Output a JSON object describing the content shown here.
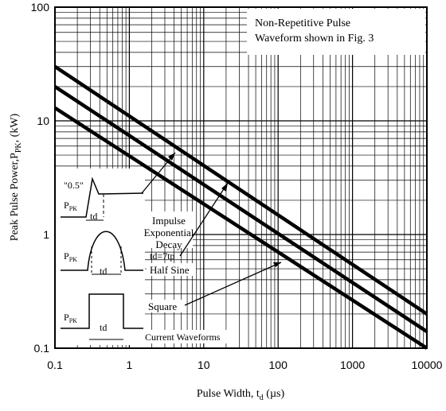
{
  "chart_data": {
    "type": "line",
    "title": "",
    "xlabel": {
      "main": "Pulse Width, t",
      "sub": "d",
      "unit": " (µs)"
    },
    "ylabel": {
      "main": "Peak Pulse Power,P",
      "sub": "PK",
      "unit": ", (kW)"
    },
    "xscale": "log",
    "yscale": "log",
    "xlim": [
      0.1,
      10000
    ],
    "ylim": [
      0.1,
      100
    ],
    "grid": true,
    "x_ticks": [
      "0.1",
      "1",
      "10",
      "100",
      "1000",
      "10000"
    ],
    "y_ticks": [
      "0.1",
      "1",
      "10",
      "100"
    ],
    "note": {
      "line1": "Non-Repetitive Pulse",
      "line2": "Waveform shown in Fig. 3"
    },
    "series": [
      {
        "name": "Impulse Exponential Decay",
        "x": [
          0.1,
          10000
        ],
        "y": [
          30,
          0.2
        ]
      },
      {
        "name": "Half Sine",
        "x": [
          0.1,
          10000
        ],
        "y": [
          20,
          0.14
        ]
      },
      {
        "name": "Square",
        "x": [
          0.1,
          10000
        ],
        "y": [
          13,
          0.1
        ]
      }
    ],
    "annotations": {
      "impulse_l1": "Impulse",
      "impulse_l2": "Exponential",
      "impulse_l3": "Decay",
      "half_sine": "Half Sine",
      "square": "Square",
      "current_waveforms": "Current Waveforms",
      "half_value": "\"0.5\"",
      "ppk_main": "P",
      "ppk_sub": "PK",
      "td": "td",
      "td_tp": "td=7tp"
    }
  }
}
